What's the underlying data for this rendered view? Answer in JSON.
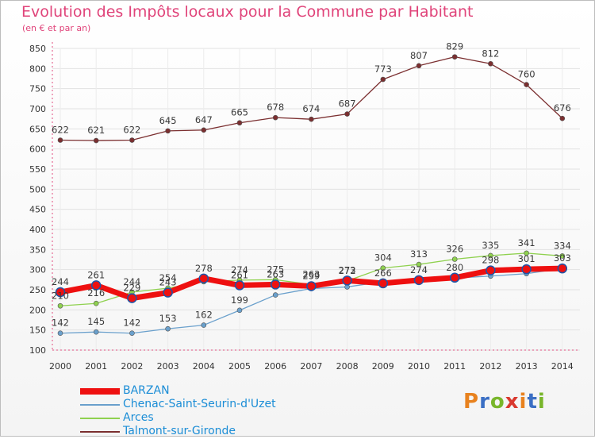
{
  "header": {
    "title": "Evolution des Impôts locaux pour la Commune par Habitant",
    "subtitle": "(en € et par an)"
  },
  "logo": {
    "text": "Proxiti",
    "colors": [
      "#e8821f",
      "#3b6fc4",
      "#79b62b",
      "#d9392f"
    ]
  },
  "chart_data": {
    "type": "line",
    "x": [
      2000,
      2001,
      2002,
      2003,
      2004,
      2005,
      2006,
      2007,
      2008,
      2009,
      2010,
      2011,
      2012,
      2013,
      2014
    ],
    "ylim": [
      100,
      850
    ],
    "yticks": [
      100,
      150,
      200,
      250,
      300,
      350,
      400,
      450,
      500,
      550,
      600,
      650,
      700,
      750,
      800,
      850
    ],
    "grid": true,
    "legend_position": "bottom-left",
    "series": [
      {
        "name": "Talmont-sur-Gironde",
        "color": "#7b2f30",
        "values": [
          622,
          621,
          622,
          645,
          647,
          665,
          678,
          674,
          687,
          773,
          807,
          829,
          812,
          760,
          676
        ]
      },
      {
        "name": "Chenac-Saint-Seurin-d'Uzet",
        "color": "#6aa0cc",
        "values": [
          142,
          145,
          142,
          153,
          162,
          199,
          237,
          253,
          257,
          270,
          276,
          279,
          284,
          290,
          303
        ]
      },
      {
        "name": "Arces",
        "color": "#8fd14f",
        "values": [
          210,
          216,
          244,
          254,
          270,
          274,
          275,
          263,
          272,
          304,
          313,
          326,
          335,
          341,
          334
        ]
      },
      {
        "name": "BARZAN",
        "color": "#ee1010",
        "values": [
          244,
          261,
          229,
          243,
          278,
          261,
          263,
          259,
          273,
          266,
          274,
          280,
          298,
          301,
          303
        ]
      }
    ],
    "point_labels": {
      "Talmont-sur-Gironde": [
        "622",
        "621",
        "622",
        "645",
        "647",
        "665",
        "678",
        "674",
        "687",
        "773",
        "807",
        "829",
        "812",
        "760",
        "676"
      ],
      "Chenac-Saint-Seurin-d'Uzet": [
        "142",
        "145",
        "142",
        "153",
        "162",
        "199",
        "",
        "",
        "",
        "",
        "",
        "",
        "",
        "",
        ""
      ],
      "Arces": [
        "210",
        "216",
        "244",
        "254",
        "",
        "274",
        "275",
        "263",
        "272",
        "304",
        "313",
        "326",
        "335",
        "341",
        "334"
      ],
      "BARZAN": [
        "244",
        "261",
        "229",
        "243",
        "278",
        "261",
        "263",
        "259",
        "273",
        "266",
        "274",
        "280",
        "298",
        "301",
        "303"
      ]
    },
    "legend_order": [
      "BARZAN",
      "Chenac-Saint-Seurin-d'Uzet",
      "Arces",
      "Talmont-sur-Gironde"
    ]
  }
}
